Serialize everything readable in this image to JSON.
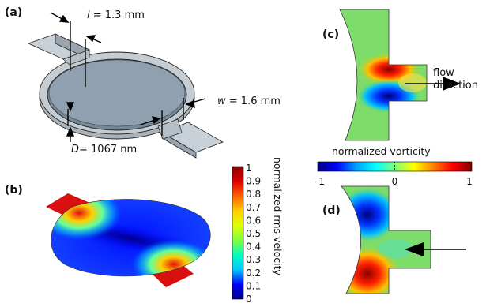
{
  "panels": {
    "a": {
      "label": "(a)",
      "length": {
        "symbol": "l",
        "value": " = 1.3 mm"
      },
      "width": {
        "symbol": "w",
        "value": " = 1.6 mm"
      },
      "depth": {
        "symbol": "D",
        "value": "= 1067 nm"
      }
    },
    "b": {
      "label": "(b)",
      "colorbar": {
        "title": "normalized rms velocity",
        "ticks": [
          "1",
          "0.9",
          "0.8",
          "0.7",
          "0.6",
          "0.5",
          "0.4",
          "0.3",
          "0.2",
          "0.1",
          "0"
        ],
        "colors": [
          "#00007f",
          "#0000ff",
          "#00c8ff",
          "#00ffc0",
          "#80ff40",
          "#e0ff00",
          "#ffd000",
          "#ff6000",
          "#e00000",
          "#8b0000"
        ]
      }
    },
    "c": {
      "label": "(c)",
      "annotation_line1": "flow",
      "annotation_line2": "direction"
    },
    "vorticity_colorbar": {
      "title": "normalized vorticity",
      "ticks": [
        "-1",
        "0",
        "1"
      ],
      "colors": [
        "#00007f",
        "#0000ff",
        "#00a0ff",
        "#00ffff",
        "#80ff80",
        "#ffff00",
        "#ff8000",
        "#ff0000",
        "#7f0000"
      ]
    },
    "d": {
      "label": "(d)"
    }
  }
}
